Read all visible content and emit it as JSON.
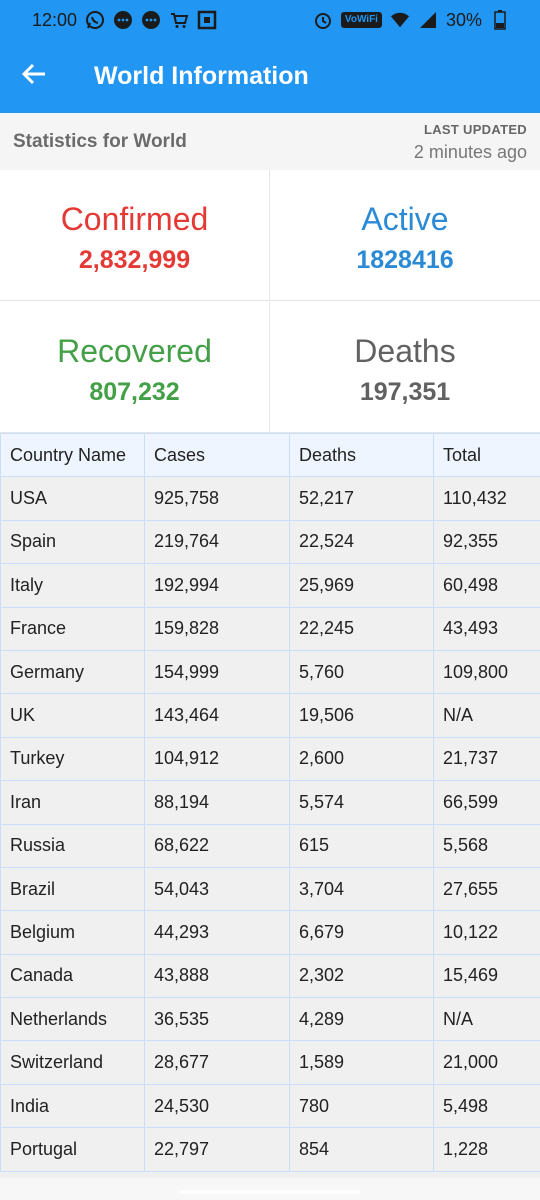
{
  "status_bar": {
    "time": "12:00",
    "battery": "30%",
    "volte": "VoWiFi",
    "icons": [
      "whatsapp-icon",
      "chat-bubble-icon",
      "chat-bubble-icon",
      "cart-icon",
      "qr-icon",
      "alarm-icon",
      "wifi-icon",
      "signal-icon",
      "battery-icon"
    ]
  },
  "app_bar": {
    "title": "World Information",
    "back_icon": "arrow-left-icon"
  },
  "header": {
    "title": "Statistics for World",
    "last_updated_label": "LAST UPDATED",
    "last_updated_value": "2 minutes ago"
  },
  "cards": {
    "confirmed": {
      "label": "Confirmed",
      "value": "2,832,999",
      "color": "#e53935"
    },
    "active": {
      "label": "Active",
      "value": "1828416",
      "color": "#2b8ad6"
    },
    "recovered": {
      "label": "Recovered",
      "value": "807,232",
      "color": "#43a047"
    },
    "deaths": {
      "label": "Deaths",
      "value": "197,351",
      "color": "#616161"
    }
  },
  "table": {
    "headers": [
      "Country Name",
      "Cases",
      "Deaths",
      "Total"
    ],
    "rows": [
      [
        "USA",
        "925,758",
        "52,217",
        "110,432"
      ],
      [
        "Spain",
        "219,764",
        "22,524",
        "92,355"
      ],
      [
        "Italy",
        "192,994",
        "25,969",
        "60,498"
      ],
      [
        "France",
        "159,828",
        "22,245",
        "43,493"
      ],
      [
        "Germany",
        "154,999",
        "5,760",
        "109,800"
      ],
      [
        "UK",
        "143,464",
        "19,506",
        "N/A"
      ],
      [
        "Turkey",
        "104,912",
        "2,600",
        "21,737"
      ],
      [
        "Iran",
        "88,194",
        "5,574",
        "66,599"
      ],
      [
        "Russia",
        "68,622",
        "615",
        "5,568"
      ],
      [
        "Brazil",
        "54,043",
        "3,704",
        "27,655"
      ],
      [
        "Belgium",
        "44,293",
        "6,679",
        "10,122"
      ],
      [
        "Canada",
        "43,888",
        "2,302",
        "15,469"
      ],
      [
        "Netherlands",
        "36,535",
        "4,289",
        "N/A"
      ],
      [
        "Switzerland",
        "28,677",
        "1,589",
        "21,000"
      ],
      [
        "India",
        "24,530",
        "780",
        "5,498"
      ],
      [
        "Portugal",
        "22,797",
        "854",
        "1,228"
      ]
    ]
  }
}
